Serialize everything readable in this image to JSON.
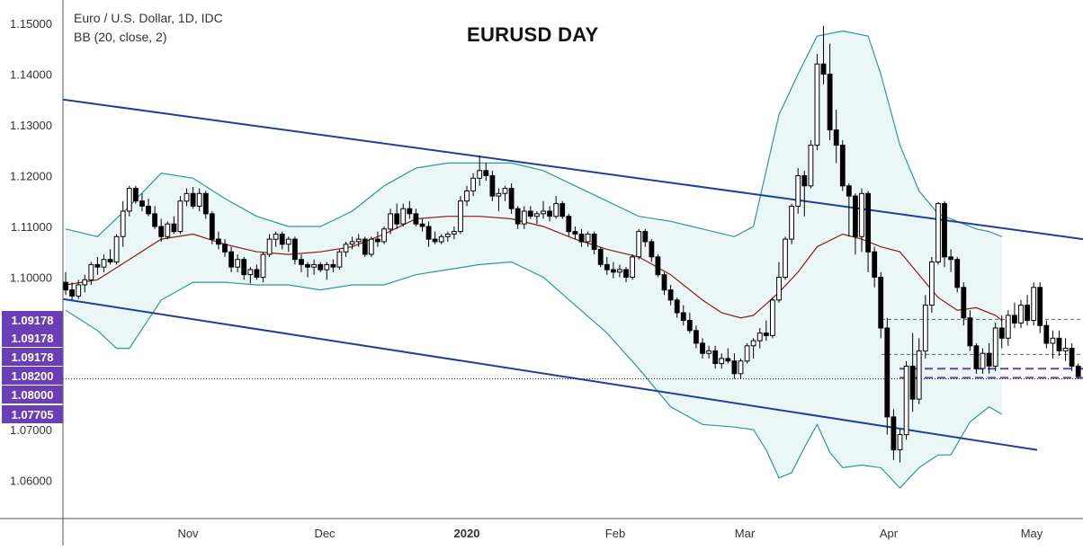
{
  "header": {
    "symbol_line": "Euro / U.S. Dollar, 1D, IDC",
    "indicator_line": "BB (20, close, 2)"
  },
  "colors": {
    "up": "#ffffff",
    "down": "#000000",
    "band": "#2a9a96",
    "band_fill": "#eaf7f6",
    "basis": "#8b1a1a",
    "trendline": "#1f3f99",
    "label_bg": "#6a3fb6",
    "dashed": "#6a3fb6",
    "axis_text": "#333333"
  },
  "chart_data": {
    "type": "candlestick",
    "title": "EURUSD DAY",
    "ylim": [
      1.055,
      1.1535
    ],
    "grid": false,
    "y_ticks": [
      "1.15000",
      "1.14000",
      "1.13000",
      "1.12000",
      "1.11000",
      "1.10000",
      "1.07000",
      "1.06000"
    ],
    "x_ticks": [
      "Nov",
      "Dec",
      "2020",
      "Feb",
      "Mar",
      "Apr",
      "May"
    ],
    "price_labels": [
      "1.09178",
      "1.09178",
      "1.09178",
      "1.08200",
      "1.08000",
      "1.07705"
    ],
    "candles": [
      [
        1.099,
        1.101,
        1.0965,
        1.0975
      ],
      [
        1.0975,
        1.099,
        1.0955,
        1.0963
      ],
      [
        1.0963,
        1.0995,
        1.0957,
        1.0985
      ],
      [
        1.0985,
        1.1005,
        1.097,
        1.0995
      ],
      [
        1.0995,
        1.103,
        1.0985,
        1.1025
      ],
      [
        1.1025,
        1.104,
        1.1005,
        1.102
      ],
      [
        1.102,
        1.1045,
        1.101,
        1.1035
      ],
      [
        1.1035,
        1.1055,
        1.1025,
        1.103
      ],
      [
        1.103,
        1.1085,
        1.1025,
        1.108
      ],
      [
        1.108,
        1.115,
        1.106,
        1.113
      ],
      [
        1.113,
        1.118,
        1.112,
        1.1175
      ],
      [
        1.1175,
        1.118,
        1.1145,
        1.115
      ],
      [
        1.115,
        1.1165,
        1.113,
        1.114
      ],
      [
        1.114,
        1.1155,
        1.112,
        1.1125
      ],
      [
        1.1125,
        1.114,
        1.1095,
        1.11
      ],
      [
        1.11,
        1.1115,
        1.107,
        1.108
      ],
      [
        1.108,
        1.111,
        1.1075,
        1.1105
      ],
      [
        1.1105,
        1.112,
        1.1085,
        1.109
      ],
      [
        1.109,
        1.116,
        1.1085,
        1.115
      ],
      [
        1.115,
        1.1175,
        1.114,
        1.1165
      ],
      [
        1.1165,
        1.1178,
        1.1135,
        1.114
      ],
      [
        1.114,
        1.1175,
        1.113,
        1.1165
      ],
      [
        1.1165,
        1.117,
        1.1115,
        1.1125
      ],
      [
        1.1125,
        1.113,
        1.1065,
        1.1075
      ],
      [
        1.1075,
        1.109,
        1.1055,
        1.1065
      ],
      [
        1.1065,
        1.1075,
        1.104,
        1.105
      ],
      [
        1.105,
        1.106,
        1.101,
        1.102
      ],
      [
        1.102,
        1.1045,
        1.101,
        1.1035
      ],
      [
        1.1035,
        1.104,
        1.0995,
        1.1005
      ],
      [
        1.1005,
        1.102,
        1.0988,
        1.1015
      ],
      [
        1.1015,
        1.1025,
        1.0995,
        1.1
      ],
      [
        1.1,
        1.105,
        1.099,
        1.1045
      ],
      [
        1.1045,
        1.1085,
        1.104,
        1.1075
      ],
      [
        1.1075,
        1.109,
        1.106,
        1.1085
      ],
      [
        1.1085,
        1.109,
        1.1055,
        1.1065
      ],
      [
        1.1065,
        1.108,
        1.105,
        1.1075
      ],
      [
        1.1075,
        1.108,
        1.1025,
        1.1035
      ],
      [
        1.1035,
        1.1045,
        1.101,
        1.1025
      ],
      [
        1.1025,
        1.103,
        1.1,
        1.102
      ],
      [
        1.102,
        1.1035,
        1.1005,
        1.1025
      ],
      [
        1.1025,
        1.103,
        1.101,
        1.1015
      ],
      [
        1.1015,
        1.103,
        1.0995,
        1.1025
      ],
      [
        1.1025,
        1.1035,
        1.101,
        1.102
      ],
      [
        1.102,
        1.1055,
        1.1015,
        1.105
      ],
      [
        1.105,
        1.107,
        1.104,
        1.1065
      ],
      [
        1.1065,
        1.108,
        1.1055,
        1.107
      ],
      [
        1.107,
        1.1085,
        1.106,
        1.1075
      ],
      [
        1.1075,
        1.108,
        1.104,
        1.1045
      ],
      [
        1.1045,
        1.108,
        1.104,
        1.1075
      ],
      [
        1.1075,
        1.109,
        1.106,
        1.107
      ],
      [
        1.107,
        1.11,
        1.1065,
        1.1095
      ],
      [
        1.1095,
        1.1135,
        1.1085,
        1.1125
      ],
      [
        1.1125,
        1.1145,
        1.1095,
        1.1105
      ],
      [
        1.1105,
        1.1145,
        1.11,
        1.1135
      ],
      [
        1.1135,
        1.115,
        1.1115,
        1.1125
      ],
      [
        1.1125,
        1.1135,
        1.11,
        1.1105
      ],
      [
        1.1105,
        1.1115,
        1.109,
        1.11
      ],
      [
        1.11,
        1.111,
        1.106,
        1.1075
      ],
      [
        1.1075,
        1.109,
        1.1065,
        1.107
      ],
      [
        1.107,
        1.1085,
        1.1065,
        1.108
      ],
      [
        1.108,
        1.109,
        1.107,
        1.1085
      ],
      [
        1.1085,
        1.11,
        1.1075,
        1.109
      ],
      [
        1.109,
        1.116,
        1.1085,
        1.115
      ],
      [
        1.115,
        1.118,
        1.114,
        1.117
      ],
      [
        1.117,
        1.1205,
        1.116,
        1.1195
      ],
      [
        1.1195,
        1.124,
        1.118,
        1.121
      ],
      [
        1.121,
        1.1225,
        1.119,
        1.12
      ],
      [
        1.12,
        1.121,
        1.115,
        1.116
      ],
      [
        1.116,
        1.1175,
        1.113,
        1.1165
      ],
      [
        1.1165,
        1.118,
        1.115,
        1.1175
      ],
      [
        1.1175,
        1.1185,
        1.1125,
        1.1135
      ],
      [
        1.1135,
        1.114,
        1.1095,
        1.1105
      ],
      [
        1.1105,
        1.114,
        1.1095,
        1.113
      ],
      [
        1.113,
        1.114,
        1.1115,
        1.112
      ],
      [
        1.112,
        1.113,
        1.1105,
        1.1125
      ],
      [
        1.1125,
        1.115,
        1.1115,
        1.113
      ],
      [
        1.113,
        1.114,
        1.111,
        1.112
      ],
      [
        1.112,
        1.116,
        1.1115,
        1.1145
      ],
      [
        1.1145,
        1.115,
        1.1115,
        1.112
      ],
      [
        1.112,
        1.1125,
        1.108,
        1.109
      ],
      [
        1.109,
        1.11,
        1.1075,
        1.1085
      ],
      [
        1.1085,
        1.1095,
        1.106,
        1.107
      ],
      [
        1.107,
        1.109,
        1.106,
        1.1085
      ],
      [
        1.1085,
        1.109,
        1.1045,
        1.1055
      ],
      [
        1.1055,
        1.106,
        1.102,
        1.1025
      ],
      [
        1.1025,
        1.104,
        1.1005,
        1.1015
      ],
      [
        1.1015,
        1.103,
        1.0998,
        1.101
      ],
      [
        1.101,
        1.1025,
        1.1,
        1.1015
      ],
      [
        1.1015,
        1.102,
        1.099,
        1.1
      ],
      [
        1.1,
        1.1045,
        1.0995,
        1.104
      ],
      [
        1.104,
        1.1095,
        1.1035,
        1.109
      ],
      [
        1.109,
        1.1095,
        1.106,
        1.107
      ],
      [
        1.107,
        1.1075,
        1.103,
        1.104
      ],
      [
        1.104,
        1.1045,
        1.1,
        1.1005
      ],
      [
        1.1005,
        1.101,
        1.0965,
        1.0975
      ],
      [
        1.0975,
        1.0985,
        1.0945,
        1.0955
      ],
      [
        1.0955,
        1.096,
        1.092,
        1.093
      ],
      [
        1.093,
        1.0945,
        1.0905,
        1.0915
      ],
      [
        1.0915,
        1.093,
        1.089,
        1.0895
      ],
      [
        1.0895,
        1.0905,
        1.086,
        1.087
      ],
      [
        1.087,
        1.088,
        1.084,
        1.085
      ],
      [
        1.085,
        1.0865,
        1.084,
        1.0855
      ],
      [
        1.0855,
        1.0865,
        1.082,
        1.083
      ],
      [
        1.083,
        1.085,
        1.082,
        1.084
      ],
      [
        1.084,
        1.086,
        1.083,
        1.0835
      ],
      [
        1.0835,
        1.085,
        1.08,
        1.081
      ],
      [
        1.081,
        1.084,
        1.08,
        1.0835
      ],
      [
        1.0835,
        1.087,
        1.083,
        1.0865
      ],
      [
        1.0865,
        1.088,
        1.084,
        1.0875
      ],
      [
        1.0875,
        1.09,
        1.086,
        1.089
      ],
      [
        1.089,
        1.0915,
        1.0875,
        1.0885
      ],
      [
        1.0885,
        1.096,
        1.088,
        1.0955
      ],
      [
        1.0955,
        1.103,
        1.095,
        1.1
      ],
      [
        1.1,
        1.108,
        1.0995,
        1.1075
      ],
      [
        1.1075,
        1.1145,
        1.1065,
        1.114
      ],
      [
        1.114,
        1.1215,
        1.1125,
        1.12
      ],
      [
        1.12,
        1.121,
        1.112,
        1.118
      ],
      [
        1.118,
        1.127,
        1.1175,
        1.126
      ],
      [
        1.126,
        1.144,
        1.125,
        1.142
      ],
      [
        1.142,
        1.1495,
        1.138,
        1.14
      ],
      [
        1.14,
        1.146,
        1.127,
        1.129
      ],
      [
        1.129,
        1.133,
        1.1225,
        1.126
      ],
      [
        1.126,
        1.127,
        1.117,
        1.118
      ],
      [
        1.118,
        1.1185,
        1.108,
        1.116
      ],
      [
        1.116,
        1.1165,
        1.1045,
        1.108
      ],
      [
        1.108,
        1.1175,
        1.105,
        1.1165
      ],
      [
        1.1165,
        1.117,
        1.101,
        1.105
      ],
      [
        1.105,
        1.106,
        1.098,
        1.1
      ],
      [
        1.1,
        1.101,
        1.088,
        1.09
      ],
      [
        1.09,
        1.092,
        1.069,
        1.0725
      ],
      [
        1.0725,
        1.074,
        1.064,
        1.066
      ],
      [
        1.066,
        1.07,
        1.0635,
        1.069
      ],
      [
        1.069,
        1.0835,
        1.068,
        1.0825
      ],
      [
        1.0825,
        1.089,
        1.0735,
        1.076
      ],
      [
        1.076,
        1.088,
        1.075,
        1.0855
      ],
      [
        1.0855,
        1.0965,
        1.084,
        1.0945
      ],
      [
        1.0945,
        1.104,
        1.093,
        1.103
      ],
      [
        1.103,
        1.1148,
        1.1025,
        1.1145
      ],
      [
        1.1145,
        1.115,
        1.102,
        1.104
      ],
      [
        1.104,
        1.1055,
        1.101,
        1.1035
      ],
      [
        1.1035,
        1.104,
        1.097,
        1.098
      ],
      [
        1.098,
        1.099,
        1.0905,
        1.092
      ],
      [
        1.092,
        1.0935,
        1.0855,
        1.0865
      ],
      [
        1.0865,
        1.087,
        1.081,
        1.082
      ],
      [
        1.082,
        1.086,
        1.081,
        1.085
      ],
      [
        1.085,
        1.087,
        1.081,
        1.0825
      ],
      [
        1.0825,
        1.091,
        1.0815,
        1.09
      ],
      [
        1.09,
        1.0925,
        1.086,
        1.088
      ],
      [
        1.088,
        1.0935,
        1.0865,
        1.0925
      ],
      [
        1.0925,
        1.095,
        1.09,
        1.091
      ],
      [
        1.091,
        1.0955,
        1.09,
        1.0945
      ],
      [
        1.0945,
        1.0965,
        1.0905,
        1.0915
      ],
      [
        1.0915,
        1.099,
        1.0905,
        1.098
      ],
      [
        1.098,
        1.099,
        1.089,
        1.0905
      ],
      [
        1.0905,
        1.0915,
        1.086,
        1.087
      ],
      [
        1.087,
        1.0895,
        1.084,
        1.088
      ],
      [
        1.088,
        1.0895,
        1.0845,
        1.0855
      ],
      [
        1.0855,
        1.088,
        1.0835,
        1.086
      ],
      [
        1.086,
        1.087,
        1.0815,
        1.0825
      ],
      [
        1.0825,
        1.083,
        1.08,
        1.0805
      ]
    ],
    "bb_upper": [
      [
        0,
        1.1095
      ],
      [
        5,
        1.108
      ],
      [
        10,
        1.114
      ],
      [
        15,
        1.1205
      ],
      [
        20,
        1.1195
      ],
      [
        25,
        1.1155
      ],
      [
        30,
        1.112
      ],
      [
        35,
        1.11
      ],
      [
        40,
        1.11
      ],
      [
        45,
        1.113
      ],
      [
        50,
        1.118
      ],
      [
        55,
        1.1215
      ],
      [
        60,
        1.1225
      ],
      [
        70,
        1.1225
      ],
      [
        75,
        1.121
      ],
      [
        80,
        1.118
      ],
      [
        85,
        1.115
      ],
      [
        90,
        1.112
      ],
      [
        95,
        1.111
      ],
      [
        100,
        1.1095
      ],
      [
        105,
        1.108
      ],
      [
        108,
        1.11
      ],
      [
        110,
        1.121
      ],
      [
        112,
        1.132
      ],
      [
        115,
        1.14
      ],
      [
        118,
        1.1475
      ],
      [
        122,
        1.1485
      ],
      [
        126,
        1.1475
      ],
      [
        128,
        1.14
      ],
      [
        131,
        1.126
      ],
      [
        134,
        1.117
      ],
      [
        137,
        1.1125
      ],
      [
        140,
        1.111
      ],
      [
        143,
        1.1095
      ],
      [
        145,
        1.109
      ],
      [
        147,
        1.108
      ]
    ],
    "bb_basis": [
      [
        0,
        1.0985
      ],
      [
        5,
        1.0995
      ],
      [
        10,
        1.1035
      ],
      [
        15,
        1.1075
      ],
      [
        20,
        1.1085
      ],
      [
        25,
        1.1065
      ],
      [
        30,
        1.105
      ],
      [
        35,
        1.1045
      ],
      [
        40,
        1.105
      ],
      [
        45,
        1.106
      ],
      [
        50,
        1.1085
      ],
      [
        55,
        1.1115
      ],
      [
        60,
        1.112
      ],
      [
        65,
        1.112
      ],
      [
        70,
        1.1115
      ],
      [
        75,
        1.11
      ],
      [
        80,
        1.1075
      ],
      [
        85,
        1.1055
      ],
      [
        90,
        1.104
      ],
      [
        95,
        1.1005
      ],
      [
        100,
        1.0955
      ],
      [
        103,
        1.093
      ],
      [
        106,
        1.092
      ],
      [
        108,
        1.0925
      ],
      [
        112,
        1.097
      ],
      [
        115,
        1.101
      ],
      [
        118,
        1.106
      ],
      [
        122,
        1.1085
      ],
      [
        125,
        1.1075
      ],
      [
        128,
        1.106
      ],
      [
        131,
        1.105
      ],
      [
        134,
        1.1005
      ],
      [
        137,
        1.096
      ],
      [
        140,
        1.0935
      ],
      [
        143,
        1.094
      ],
      [
        146,
        1.0925
      ],
      [
        147,
        1.0915
      ]
    ],
    "bb_lower": [
      [
        0,
        1.0935
      ],
      [
        5,
        1.0895
      ],
      [
        8,
        1.086
      ],
      [
        10,
        1.086
      ],
      [
        15,
        1.0955
      ],
      [
        20,
        1.099
      ],
      [
        25,
        1.099
      ],
      [
        30,
        1.0985
      ],
      [
        35,
        1.0985
      ],
      [
        40,
        1.0975
      ],
      [
        45,
        1.0985
      ],
      [
        50,
        1.0985
      ],
      [
        55,
        1.1005
      ],
      [
        60,
        1.1015
      ],
      [
        65,
        1.1025
      ],
      [
        70,
        1.103
      ],
      [
        75,
        1.1
      ],
      [
        80,
        1.0945
      ],
      [
        85,
        1.089
      ],
      [
        90,
        1.082
      ],
      [
        95,
        1.0745
      ],
      [
        100,
        1.071
      ],
      [
        105,
        1.0705
      ],
      [
        108,
        1.07
      ],
      [
        110,
        1.066
      ],
      [
        112,
        1.0605
      ],
      [
        114,
        1.0615
      ],
      [
        116,
        1.0665
      ],
      [
        118,
        1.071
      ],
      [
        120,
        1.0655
      ],
      [
        122,
        1.0625
      ],
      [
        125,
        1.063
      ],
      [
        128,
        1.0625
      ],
      [
        131,
        1.0585
      ],
      [
        134,
        1.0625
      ],
      [
        137,
        1.065
      ],
      [
        139,
        1.065
      ],
      [
        142,
        1.0715
      ],
      [
        145,
        1.0745
      ],
      [
        147,
        1.073
      ]
    ]
  }
}
